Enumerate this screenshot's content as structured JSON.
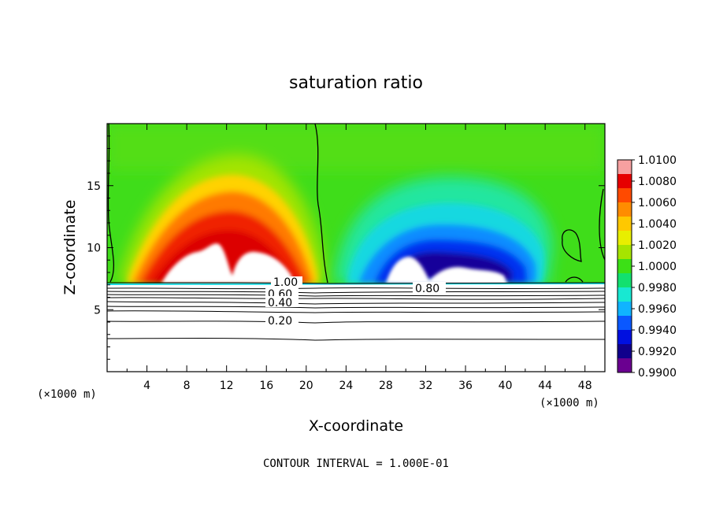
{
  "chart_data": {
    "type": "heatmap",
    "title": "saturation ratio",
    "xlabel": "X-coordinate",
    "ylabel": "Z-coordinate",
    "x_unit": "(×1000 m)",
    "y_unit": "(×1000 m)",
    "xlim": [
      0,
      50
    ],
    "ylim": [
      0,
      20
    ],
    "x_ticks": [
      4,
      8,
      12,
      16,
      20,
      24,
      28,
      32,
      36,
      40,
      44,
      48
    ],
    "y_ticks": [
      5,
      10,
      15
    ],
    "colorbar": {
      "levels": [
        "1.0100",
        "1.0080",
        "1.0060",
        "1.0040",
        "1.0020",
        "1.0000",
        "0.9980",
        "0.9960",
        "0.9940",
        "0.9920",
        "0.9900"
      ],
      "colors": [
        "#f7a0a0",
        "#e60000",
        "#ff4a00",
        "#ff8c00",
        "#ffc800",
        "#e8ee00",
        "#a6e400",
        "#3ce016",
        "#12e070",
        "#18e8d2",
        "#10b4ff",
        "#0a58ff",
        "#0010e0",
        "#10008c",
        "#6a0090"
      ]
    },
    "contour_labels": [
      {
        "text": "1.00",
        "x": 20.0,
        "z": 7.0
      },
      {
        "text": "0.80",
        "x": 32.5,
        "z": 6.7
      },
      {
        "text": "0.60",
        "x": 17.8,
        "z": 6.2
      },
      {
        "text": "0.40",
        "x": 17.8,
        "z": 5.5
      },
      {
        "text": "0.20",
        "x": 17.8,
        "z": 4.1
      }
    ],
    "contour_interval": "CONTOUR INTERVAL = 1.000E-01"
  }
}
